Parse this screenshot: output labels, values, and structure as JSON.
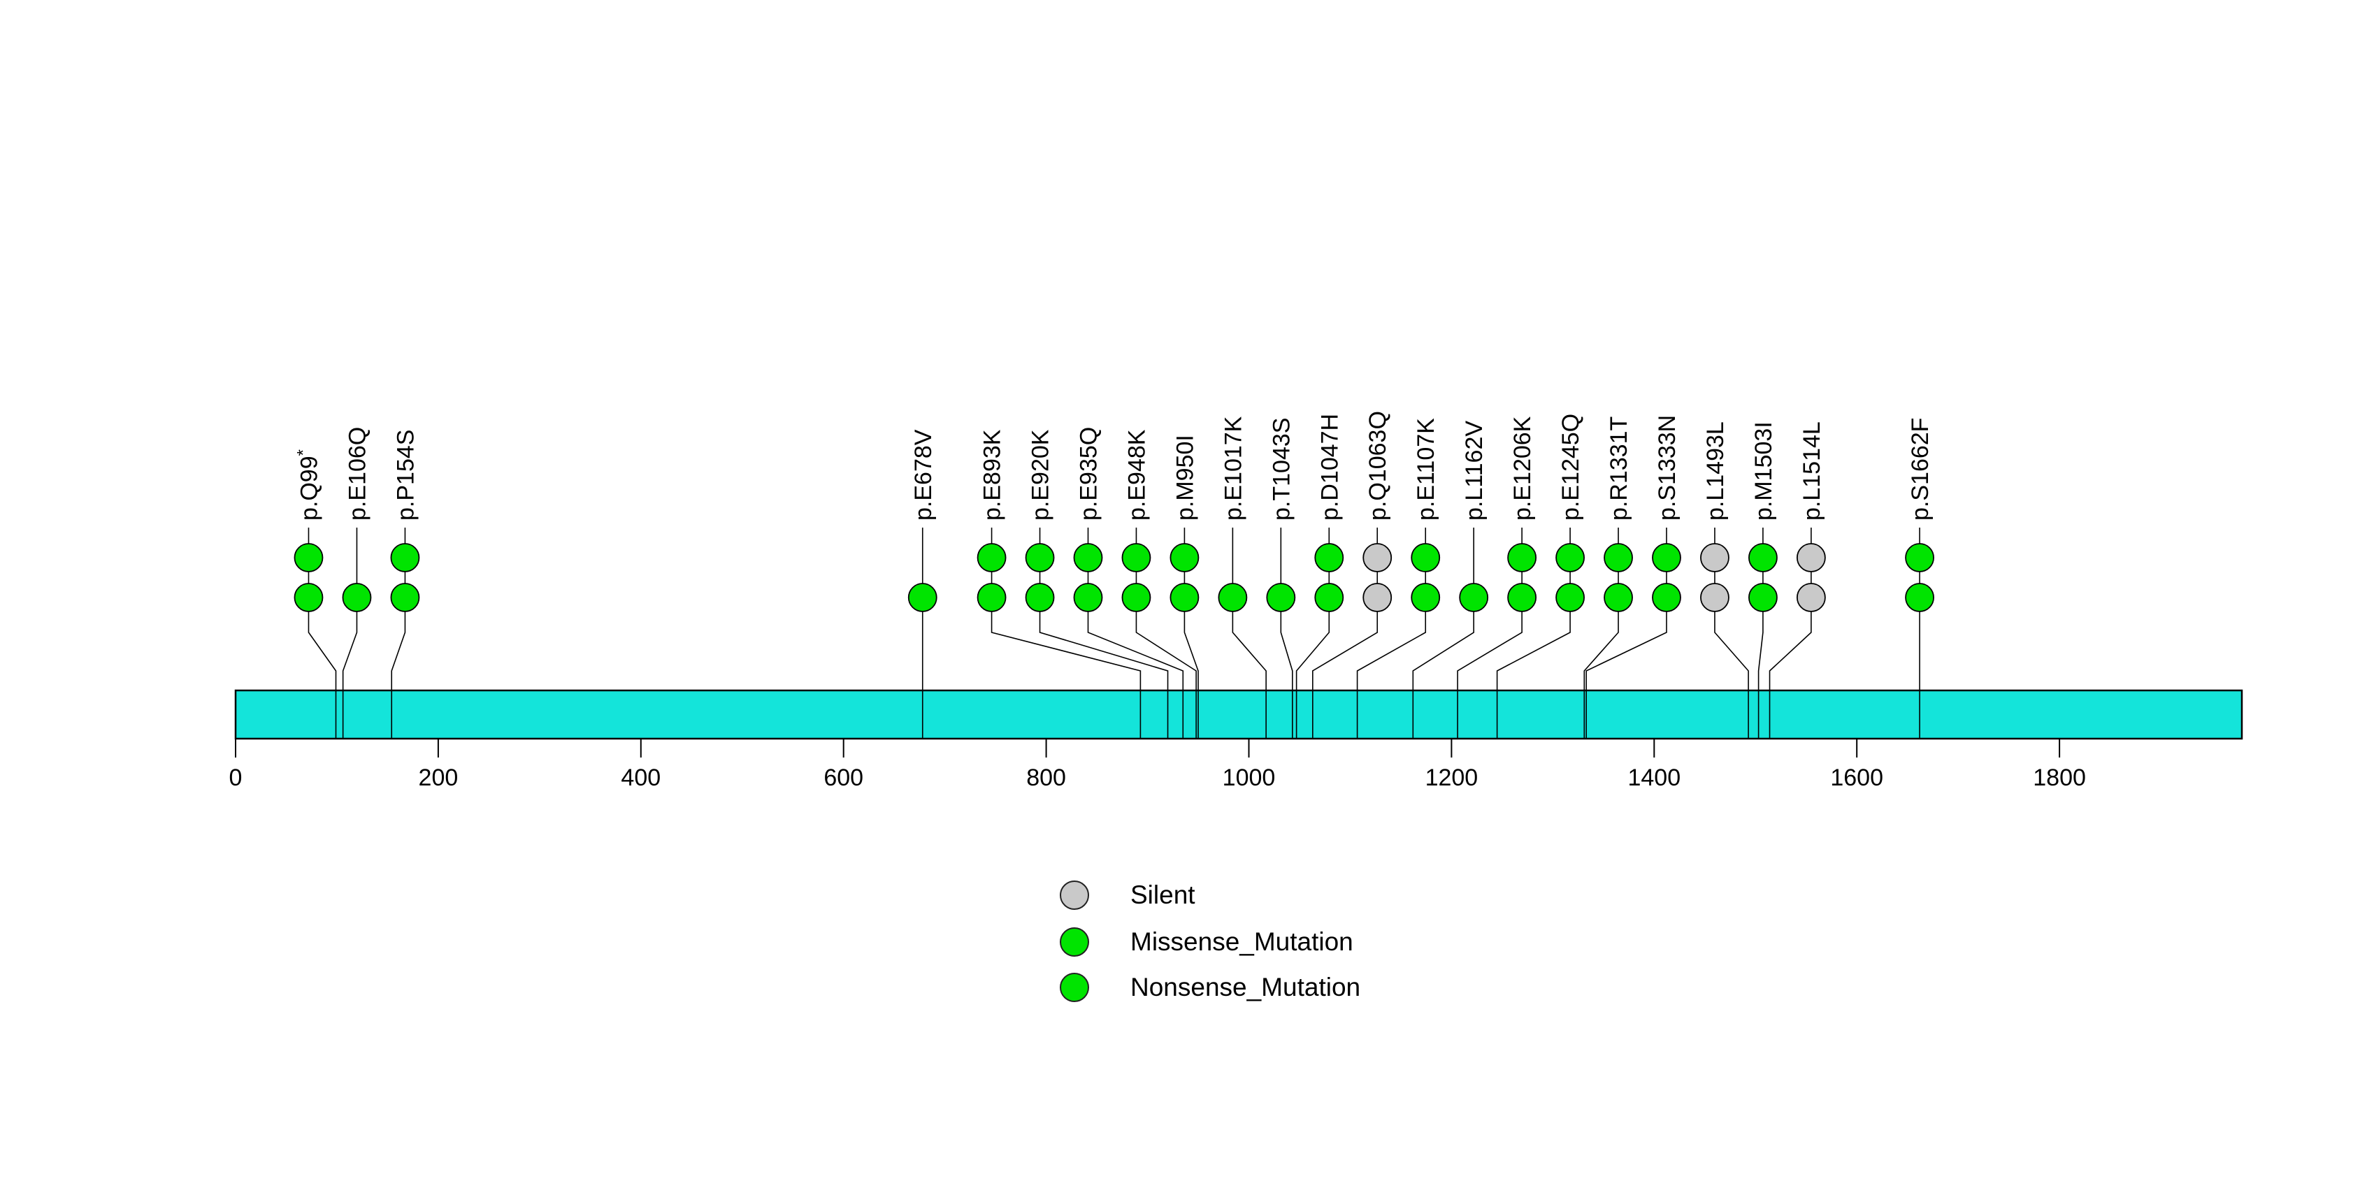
{
  "chart_data": {
    "type": "lollipop",
    "title": "",
    "xlabel": "",
    "ylabel": "",
    "xlim": [
      0,
      1980
    ],
    "x_ticks": [
      0,
      200,
      400,
      600,
      800,
      1000,
      1200,
      1400,
      1600,
      1800
    ],
    "protein": {
      "length": 1980,
      "bar_color": "#14E4DA",
      "bar_border_color": "#000000"
    },
    "mutation_type_colors": {
      "Silent": "#C9C9C9",
      "Missense_Mutation": "#00E400",
      "Nonsense_Mutation": "#00E400"
    },
    "mutations": [
      {
        "label": "p.Q99*",
        "position": 99,
        "count": 2,
        "type": "Nonsense_Mutation"
      },
      {
        "label": "p.E106Q",
        "position": 106,
        "count": 1,
        "type": "Missense_Mutation"
      },
      {
        "label": "p.P154S",
        "position": 154,
        "count": 2,
        "type": "Missense_Mutation"
      },
      {
        "label": "p.E678V",
        "position": 678,
        "count": 1,
        "type": "Missense_Mutation"
      },
      {
        "label": "p.E893K",
        "position": 893,
        "count": 2,
        "type": "Missense_Mutation"
      },
      {
        "label": "p.E920K",
        "position": 920,
        "count": 2,
        "type": "Missense_Mutation"
      },
      {
        "label": "p.E935Q",
        "position": 935,
        "count": 2,
        "type": "Missense_Mutation"
      },
      {
        "label": "p.E948K",
        "position": 948,
        "count": 2,
        "type": "Missense_Mutation"
      },
      {
        "label": "p.M950I",
        "position": 950,
        "count": 2,
        "type": "Missense_Mutation"
      },
      {
        "label": "p.E1017K",
        "position": 1017,
        "count": 1,
        "type": "Missense_Mutation"
      },
      {
        "label": "p.T1043S",
        "position": 1043,
        "count": 1,
        "type": "Missense_Mutation"
      },
      {
        "label": "p.D1047H",
        "position": 1047,
        "count": 2,
        "type": "Missense_Mutation"
      },
      {
        "label": "p.Q1063Q",
        "position": 1063,
        "count": 2,
        "type": "Silent"
      },
      {
        "label": "p.E1107K",
        "position": 1107,
        "count": 2,
        "type": "Missense_Mutation"
      },
      {
        "label": "p.L1162V",
        "position": 1162,
        "count": 1,
        "type": "Missense_Mutation"
      },
      {
        "label": "p.E1206K",
        "position": 1206,
        "count": 2,
        "type": "Missense_Mutation"
      },
      {
        "label": "p.E1245Q",
        "position": 1245,
        "count": 2,
        "type": "Missense_Mutation"
      },
      {
        "label": "p.R1331T",
        "position": 1331,
        "count": 2,
        "type": "Missense_Mutation"
      },
      {
        "label": "p.S1333N",
        "position": 1333,
        "count": 2,
        "type": "Missense_Mutation"
      },
      {
        "label": "p.L1493L",
        "position": 1493,
        "count": 2,
        "type": "Silent"
      },
      {
        "label": "p.M1503I",
        "position": 1503,
        "count": 2,
        "type": "Missense_Mutation"
      },
      {
        "label": "p.L1514L",
        "position": 1514,
        "count": 2,
        "type": "Silent"
      },
      {
        "label": "p.S1662F",
        "position": 1662,
        "count": 2,
        "type": "Missense_Mutation"
      }
    ],
    "legend": {
      "position": "bottom-center",
      "items": [
        {
          "label": "Silent",
          "color": "#C9C9C9"
        },
        {
          "label": "Missense_Mutation",
          "color": "#00E400"
        },
        {
          "label": "Nonsense_Mutation",
          "color": "#00E400"
        }
      ]
    }
  }
}
